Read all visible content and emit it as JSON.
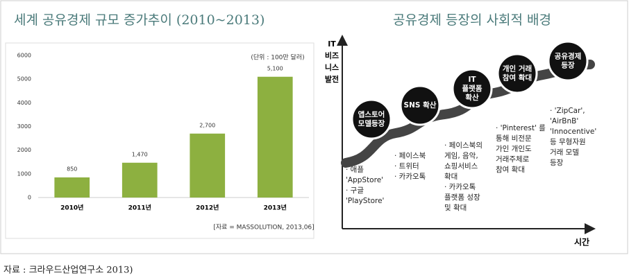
{
  "chart_data": {
    "type": "bar",
    "title": "세계 공유경제 규모 증가추이 (2010~2013)",
    "unit_note": "(단위 : 100만 달러)",
    "source": "[자료 = MASSOLUTION, 2013,06]",
    "categories": [
      "2010년",
      "2011년",
      "2012년",
      "2013년"
    ],
    "values": [
      850,
      1470,
      2700,
      5100
    ],
    "value_labels": [
      "850",
      "1,470",
      "2,700",
      "5,100"
    ],
    "color": "#8db040",
    "ylim": [
      0,
      6000
    ],
    "yticks": [
      0,
      1000,
      2000,
      3000,
      4000,
      5000,
      6000
    ],
    "grid": false
  },
  "diagram": {
    "title": "공유경제 등장의 사회적 배경",
    "y_axis_label": [
      "IT",
      "비즈",
      "니스",
      "발전"
    ],
    "x_axis_label": "시간",
    "nodes": [
      {
        "label": [
          "앱스토어",
          "모델등장"
        ],
        "notes": [
          "· 애플",
          "'AppStore'",
          "· 구글",
          "'PlayStore'"
        ]
      },
      {
        "label": [
          "SNS 확산"
        ],
        "notes": [
          "· 페이스북",
          "· 트위터",
          "· 카카오톡"
        ]
      },
      {
        "label": [
          "IT",
          "플랫폼",
          "확산"
        ],
        "notes": [
          "· 페이스북의",
          "게임, 음악,",
          "쇼핑서비스",
          "확대",
          "· 카카오톡",
          "플랫폼 성장",
          "및 확대"
        ]
      },
      {
        "label": [
          "개인 거래",
          "참여 확대"
        ],
        "notes": [
          "· 'Pinterest' 를",
          "통해 비전문",
          "가인 개인도",
          "거래주체로",
          "참여 확대"
        ]
      },
      {
        "label": [
          "공유경제",
          "등장"
        ],
        "notes": [
          "· 'ZipCar',",
          "'AirBnB'",
          "'Innocentive'",
          "등 무형자원",
          "거래 모델",
          "등장"
        ]
      }
    ]
  },
  "caption": "자료 : 크라우드산업연구소 2013)"
}
